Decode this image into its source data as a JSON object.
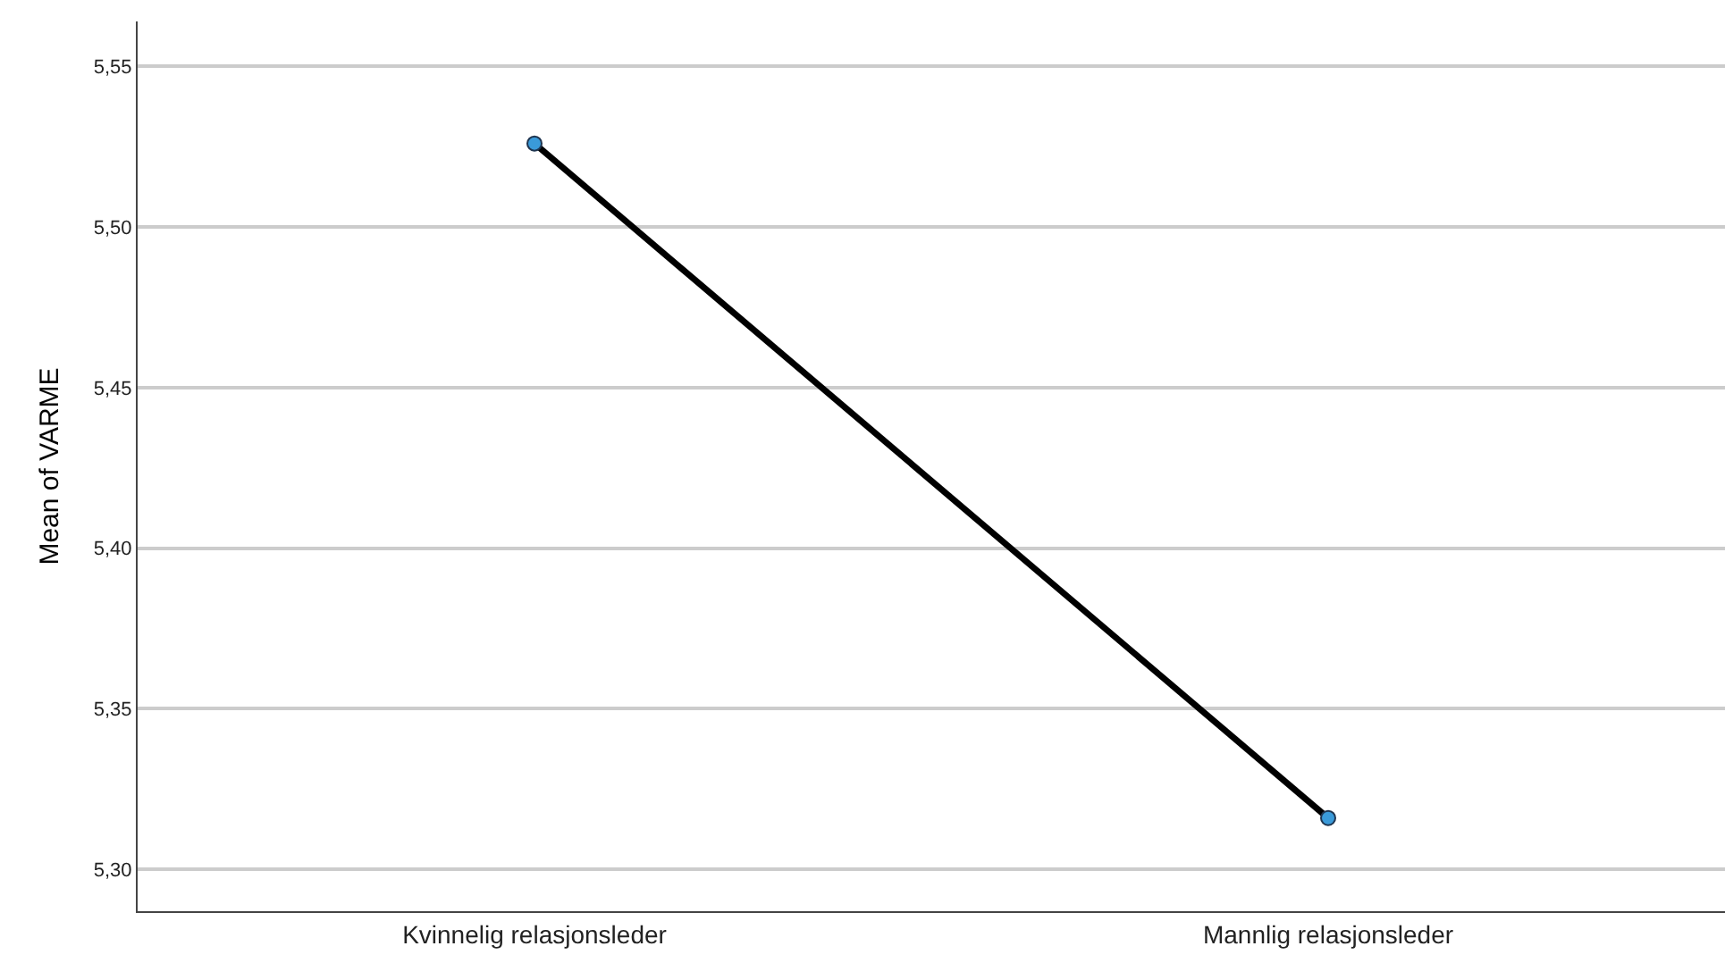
{
  "chart_data": {
    "type": "line",
    "ylabel": "Mean of VARME",
    "categories": [
      "Kvinnelig relasjonsleder",
      "Mannlig relasjonsleder"
    ],
    "series": [
      {
        "color": "#000000",
        "colors": [
          "#3a9ad9",
          "#3a9ad9"
        ],
        "values": [
          5.526,
          5.316
        ]
      }
    ],
    "marker": "circle",
    "line_style": "solid",
    "ylim": [
      5.287,
      5.564
    ],
    "yticks": [
      {
        "value": 5.3,
        "label": "5,30"
      },
      {
        "value": 5.35,
        "label": "5,35"
      },
      {
        "value": 5.4,
        "label": "5,40"
      },
      {
        "value": 5.45,
        "label": "5,45"
      },
      {
        "value": 5.5,
        "label": "5,50"
      },
      {
        "value": 5.55,
        "label": "5,55"
      }
    ],
    "grid": "y",
    "legend": false
  }
}
